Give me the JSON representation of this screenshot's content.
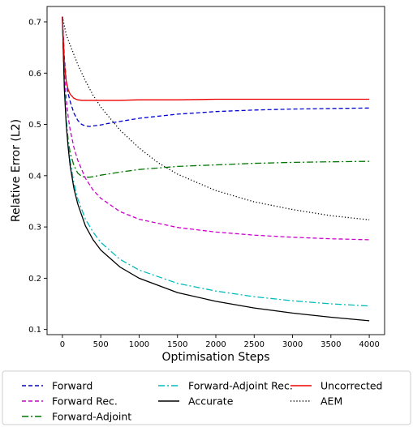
{
  "chart_data": {
    "type": "line",
    "xlabel": "Optimisation Steps",
    "ylabel": "Relative Error (L2)",
    "xlim": [
      -200,
      4200
    ],
    "ylim": [
      0.09,
      0.73
    ],
    "xticks": [
      0,
      500,
      1000,
      1500,
      2000,
      2500,
      3000,
      3500,
      4000
    ],
    "yticks": [
      0.1,
      0.2,
      0.3,
      0.4,
      0.5,
      0.6,
      0.7
    ],
    "grid": false,
    "legend_position": "bottom",
    "series": [
      {
        "name": "Forward",
        "color": "#0000cc",
        "dash": "dashed",
        "x": [
          0,
          25,
          50,
          75,
          100,
          150,
          200,
          250,
          300,
          350,
          400,
          500,
          600,
          800,
          1000,
          1500,
          2000,
          2500,
          3000,
          3500,
          4000
        ],
        "y": [
          0.71,
          0.63,
          0.585,
          0.56,
          0.545,
          0.522,
          0.508,
          0.5,
          0.497,
          0.496,
          0.497,
          0.499,
          0.502,
          0.507,
          0.512,
          0.52,
          0.525,
          0.528,
          0.53,
          0.531,
          0.532
        ]
      },
      {
        "name": "Forward Rec.",
        "color": "#cc00cc",
        "dash": "dashed",
        "x": [
          0,
          25,
          50,
          75,
          100,
          150,
          200,
          300,
          400,
          500,
          750,
          1000,
          1500,
          2000,
          2500,
          3000,
          3500,
          4000
        ],
        "y": [
          0.71,
          0.6,
          0.55,
          0.515,
          0.49,
          0.455,
          0.43,
          0.395,
          0.372,
          0.356,
          0.33,
          0.315,
          0.299,
          0.29,
          0.284,
          0.28,
          0.277,
          0.275
        ]
      },
      {
        "name": "Forward-Adjoint",
        "color": "#007700",
        "dash": "dashdot",
        "x": [
          0,
          25,
          50,
          75,
          100,
          150,
          200,
          250,
          300,
          350,
          400,
          500,
          750,
          1000,
          1500,
          2000,
          2500,
          3000,
          3500,
          4000
        ],
        "y": [
          0.71,
          0.58,
          0.51,
          0.47,
          0.445,
          0.42,
          0.405,
          0.399,
          0.397,
          0.397,
          0.398,
          0.401,
          0.407,
          0.412,
          0.418,
          0.421,
          0.424,
          0.426,
          0.427,
          0.428
        ]
      },
      {
        "name": "Forward-Adjoint Rec.",
        "color": "#00bbbb",
        "dash": "dashdot",
        "x": [
          0,
          25,
          50,
          75,
          100,
          150,
          200,
          300,
          400,
          500,
          750,
          1000,
          1500,
          2000,
          2500,
          3000,
          3500,
          4000
        ],
        "y": [
          0.71,
          0.58,
          0.51,
          0.46,
          0.43,
          0.385,
          0.355,
          0.315,
          0.29,
          0.27,
          0.237,
          0.216,
          0.19,
          0.175,
          0.164,
          0.156,
          0.15,
          0.146
        ]
      },
      {
        "name": "Accurate",
        "color": "#000000",
        "dash": "solid",
        "x": [
          0,
          25,
          50,
          75,
          100,
          150,
          200,
          300,
          400,
          500,
          750,
          1000,
          1500,
          2000,
          2500,
          3000,
          3500,
          4000
        ],
        "y": [
          0.71,
          0.57,
          0.5,
          0.455,
          0.42,
          0.375,
          0.345,
          0.302,
          0.275,
          0.255,
          0.222,
          0.2,
          0.172,
          0.155,
          0.142,
          0.132,
          0.124,
          0.117
        ]
      },
      {
        "name": "Uncorrected",
        "color": "#ee0000",
        "dash": "solid",
        "x": [
          0,
          25,
          50,
          75,
          100,
          150,
          200,
          250,
          300,
          400,
          500,
          750,
          1000,
          1500,
          2000,
          2500,
          3000,
          3500,
          4000
        ],
        "y": [
          0.71,
          0.62,
          0.585,
          0.568,
          0.559,
          0.551,
          0.548,
          0.547,
          0.547,
          0.547,
          0.547,
          0.547,
          0.548,
          0.548,
          0.549,
          0.549,
          0.549,
          0.549,
          0.549
        ]
      },
      {
        "name": "AEM",
        "color": "#000000",
        "dash": "dotted",
        "x": [
          0,
          50,
          100,
          200,
          300,
          400,
          500,
          750,
          1000,
          1250,
          1500,
          2000,
          2500,
          3000,
          3500,
          4000
        ],
        "y": [
          0.71,
          0.675,
          0.655,
          0.617,
          0.585,
          0.557,
          0.534,
          0.489,
          0.454,
          0.425,
          0.403,
          0.371,
          0.349,
          0.334,
          0.322,
          0.314
        ]
      }
    ],
    "legend_layout": [
      [
        "Forward",
        "Forward Rec.",
        "Forward-Adjoint"
      ],
      [
        "Forward-Adjoint Rec.",
        "Accurate"
      ],
      [
        "Uncorrected",
        "AEM"
      ]
    ]
  }
}
